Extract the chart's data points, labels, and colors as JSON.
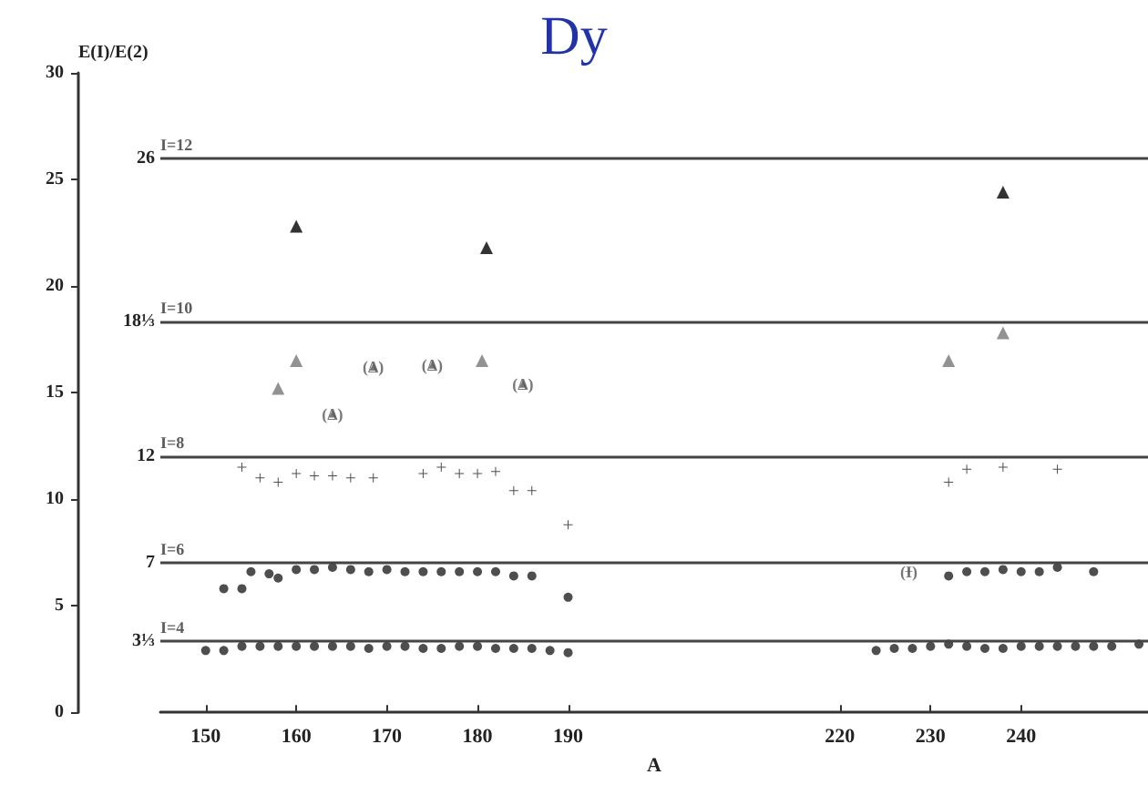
{
  "chart_data": {
    "type": "scatter",
    "title": "Dy",
    "xlabel": "A",
    "ylabel": "E(I)/E(2)",
    "xlim": [
      145,
      254
    ],
    "xticks": [
      150,
      160,
      170,
      180,
      190,
      220,
      230,
      240
    ],
    "ylim": [
      0,
      30
    ],
    "yticks": [
      0,
      5,
      10,
      15,
      20,
      25,
      30
    ],
    "grid": false,
    "series": [
      {
        "color": "#000000",
        "marker": "triangle",
        "x": [
          160,
          181,
          238
        ],
        "values": [
          22.8,
          21.8,
          24.4
        ]
      },
      {
        "color": "#777777",
        "marker": "triangle",
        "x": [
          158,
          160,
          180.5,
          232,
          238
        ],
        "values": [
          15.2,
          16.5,
          16.5,
          16.5,
          17.8
        ]
      },
      {
        "color": "#222222",
        "marker": "cross",
        "x": [
          154,
          156,
          158,
          160,
          162,
          164,
          166,
          168.5,
          174,
          176,
          178,
          180,
          182,
          184,
          186,
          190,
          232,
          234,
          238,
          244
        ],
        "values": [
          11.5,
          11.0,
          10.8,
          11.2,
          11.1,
          11.1,
          11.0,
          11.0,
          11.2,
          11.5,
          11.2,
          11.2,
          11.3,
          10.4,
          10.4,
          8.8,
          10.8,
          11.4,
          11.5,
          11.4
        ]
      },
      {
        "color": "#222222",
        "marker": "circle",
        "x": [
          152,
          154,
          155,
          157,
          158,
          160,
          162,
          164,
          166,
          168,
          170,
          172,
          174,
          176,
          178,
          180,
          182,
          184,
          186,
          190,
          232,
          234,
          236,
          238,
          240,
          242,
          244,
          248
        ],
        "values": [
          5.8,
          5.8,
          6.6,
          6.5,
          6.3,
          6.7,
          6.7,
          6.8,
          6.7,
          6.6,
          6.7,
          6.6,
          6.6,
          6.6,
          6.6,
          6.6,
          6.6,
          6.4,
          6.4,
          5.4,
          6.4,
          6.6,
          6.6,
          6.7,
          6.6,
          6.6,
          6.8,
          6.6
        ]
      },
      {
        "color": "#555555",
        "marker": "triangle",
        "x": [
          168.5,
          175,
          185,
          164
        ],
        "values": [
          16.2,
          16.3,
          15.4,
          14.0
        ],
        "value_labels": [
          "(Δ)",
          "(Δ)",
          "(Δ)",
          "(Δ)"
        ]
      },
      {
        "color": "#555555",
        "marker": "cross",
        "x": [
          227.6
        ],
        "values": [
          6.6
        ],
        "value_labels": [
          "(I)"
        ]
      },
      {
        "color": "#222222",
        "marker": "circle",
        "x": [
          150,
          152,
          154,
          156,
          158,
          160,
          162,
          164,
          166,
          168,
          170,
          172,
          174,
          176,
          178,
          180,
          182,
          184,
          186,
          188,
          190,
          224,
          226,
          228,
          230,
          232,
          234,
          236,
          238,
          240,
          242,
          244,
          246,
          248,
          250,
          253
        ],
        "values": [
          2.9,
          2.9,
          3.1,
          3.1,
          3.1,
          3.1,
          3.1,
          3.1,
          3.1,
          3.0,
          3.1,
          3.1,
          3.0,
          3.0,
          3.1,
          3.1,
          3.0,
          3.0,
          3.0,
          2.9,
          2.8,
          2.9,
          3.0,
          3.0,
          3.1,
          3.2,
          3.1,
          3.0,
          3.0,
          3.1,
          3.1,
          3.1,
          3.1,
          3.1,
          3.1,
          3.2
        ]
      }
    ],
    "ref_lines": [
      {
        "axis": "y",
        "value": 26,
        "label": "26"
      },
      {
        "axis": "y",
        "value": 18.333,
        "label": "18⅓"
      },
      {
        "axis": "y",
        "value": 12,
        "label": "12"
      },
      {
        "axis": "y",
        "value": 7,
        "label": "7"
      },
      {
        "axis": "y",
        "value": 3.333,
        "label": "3⅓"
      }
    ],
    "annotations": [
      {
        "text": "I=12",
        "y": 26
      },
      {
        "text": "I=10",
        "y": 18.333
      },
      {
        "text": "I=8",
        "y": 12
      },
      {
        "text": "I=6",
        "y": 7
      },
      {
        "text": "I=4",
        "y": 3.333
      }
    ]
  }
}
